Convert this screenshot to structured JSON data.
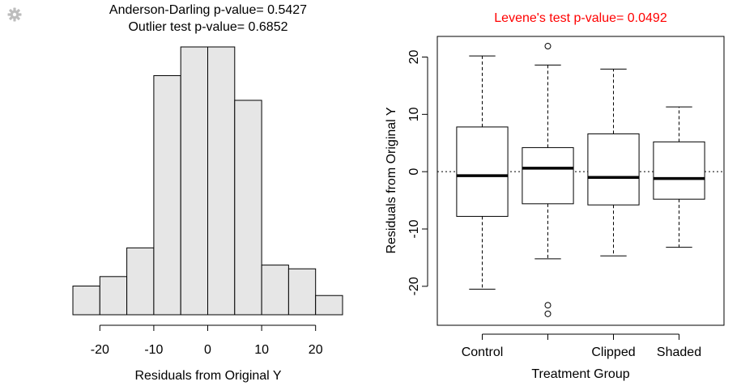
{
  "icons": {
    "settings": "gear-icon"
  },
  "colors": {
    "hist_fill": "#e6e6e6",
    "stroke": "#000000",
    "levene_title": "#ff0000",
    "gear": "#bdbdbd"
  },
  "chart_data": [
    {
      "type": "bar",
      "subtype": "histogram",
      "title_lines": [
        "Anderson-Darling p-value= 0.5427",
        "Outlier test p-value= 0.6852"
      ],
      "xlabel": "Residuals from Original Y",
      "ylabel": "",
      "bin_edges": [
        -25,
        -20,
        -15,
        -10,
        -5,
        0,
        5,
        10,
        15,
        20,
        25
      ],
      "values": [
        1,
        1.33,
        2.33,
        8.33,
        9.33,
        9.33,
        7.47,
        1.73,
        1.6,
        0.67
      ],
      "xticks": [
        -20,
        -10,
        0,
        10,
        20
      ],
      "tick_labels": [
        "-20",
        "-10",
        "0",
        "10",
        "20"
      ],
      "xlim": [
        -25,
        25
      ],
      "ylim": [
        0,
        9.33
      ],
      "grid": false
    },
    {
      "type": "box",
      "title": "Levene's test p-value= 0.0492",
      "xlabel": "Treatment Group",
      "ylabel": "Residuals from Original Y",
      "category_labels": [
        "Control",
        "",
        "Clipped",
        "Shaded"
      ],
      "boxes": [
        {
          "whisker_low": -20.5,
          "q1": -7.8,
          "median": -0.7,
          "q3": 7.8,
          "whisker_high": 20.2,
          "outliers": []
        },
        {
          "whisker_low": -15.2,
          "q1": -5.6,
          "median": 0.6,
          "q3": 4.2,
          "whisker_high": 18.6,
          "outliers": [
            21.9,
            -23.3,
            -24.8
          ]
        },
        {
          "whisker_low": -14.7,
          "q1": -5.8,
          "median": -1.0,
          "q3": 6.6,
          "whisker_high": 17.9,
          "outliers": []
        },
        {
          "whisker_low": -13.2,
          "q1": -4.8,
          "median": -1.2,
          "q3": 5.2,
          "whisker_high": 11.3,
          "outliers": []
        }
      ],
      "yticks": [
        -20,
        -10,
        0,
        10,
        20
      ],
      "tick_labels": [
        "-20",
        "-10",
        "0",
        "10",
        "20"
      ],
      "ylim": [
        -26.8,
        23.6
      ],
      "reference_line": 0,
      "grid": false
    }
  ]
}
